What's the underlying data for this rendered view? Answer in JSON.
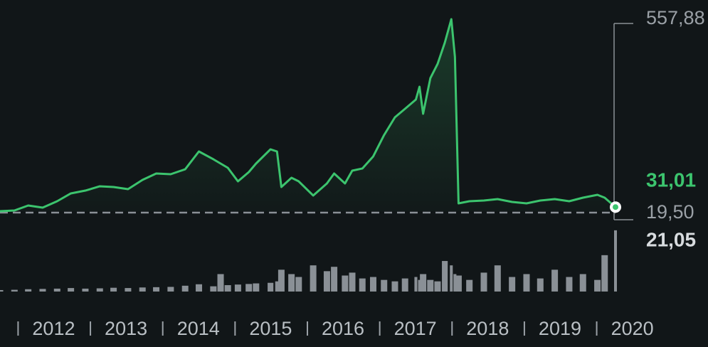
{
  "chart_data": {
    "type": "line",
    "x": [
      2011.75,
      2011.95,
      2012.14,
      2012.34,
      2012.54,
      2012.73,
      2012.93,
      2013.13,
      2013.32,
      2013.52,
      2013.72,
      2013.91,
      2014.11,
      2014.31,
      2014.5,
      2014.7,
      2014.8,
      2014.9,
      2015.04,
      2015.19,
      2015.29,
      2015.49,
      2015.58,
      2015.64,
      2015.78,
      2015.88,
      2016.08,
      2016.27,
      2016.37,
      2016.52,
      2016.62,
      2016.76,
      2016.91,
      2017.06,
      2017.21,
      2017.35,
      2017.5,
      2017.55,
      2017.6,
      2017.7,
      2017.8,
      2017.9,
      2017.99,
      2018.04,
      2018.09,
      2018.24,
      2018.44,
      2018.63,
      2018.83,
      2019.03,
      2019.22,
      2019.42,
      2019.62,
      2019.81,
      2020.01,
      2020.11,
      2020.26
    ],
    "series": [
      {
        "color": "#3cc46e",
        "values": [
          19.5,
          21.5,
          35.5,
          29.5,
          47.4,
          69.4,
          77.3,
          89.3,
          87.3,
          81.3,
          107.2,
          125.2,
          123.2,
          137.1,
          187,
          165.1,
          153.1,
          141.1,
          103.2,
          129.2,
          153.1,
          193,
          187,
          87.3,
          113.2,
          103.2,
          63.4,
          97.3,
          125.2,
          97.3,
          133.2,
          139.2,
          173.1,
          232.9,
          282.7,
          306.6,
          332.6,
          368.5,
          292.7,
          392.4,
          432.3,
          492.1,
          557.88,
          452.2,
          41.4,
          47.4,
          49.4,
          53.4,
          45.4,
          41.4,
          49.4,
          53.4,
          47.4,
          57.4,
          65.4,
          57.4,
          31.01
        ],
        "value_labels": [
          null,
          null,
          null,
          null,
          null,
          null,
          null,
          null,
          null,
          null,
          null,
          null,
          null,
          null,
          null,
          null,
          null,
          null,
          null,
          null,
          null,
          null,
          null,
          null,
          null,
          null,
          null,
          null,
          null,
          null,
          null,
          null,
          null,
          null,
          null,
          null,
          null,
          null,
          null,
          null,
          null,
          null,
          null,
          null,
          null,
          null,
          null,
          null,
          null,
          null,
          null,
          null,
          null,
          null,
          null,
          null,
          "31,01"
        ]
      },
      {
        "color": "#8a9096",
        "axis": "y2",
        "values": [
          0.5,
          0.6,
          0.8,
          0.9,
          1.0,
          1.2,
          1.0,
          1.1,
          1.3,
          1.2,
          1.4,
          1.5,
          1.6,
          2.0,
          2.5,
          1.8,
          6.0,
          2.2,
          2.4,
          2.6,
          2.8,
          3.0,
          3.5,
          7.5,
          6.0,
          5.0,
          9.0,
          7.0,
          8.5,
          5.5,
          6.5,
          4.5,
          5.0,
          4.0,
          3.5,
          4.5,
          5.0,
          4.0,
          6.0,
          4.0,
          3.5,
          10.5,
          9.0,
          6.0,
          5.5,
          4.0,
          6.5,
          9.0,
          5.0,
          6.0,
          4.5,
          7.5,
          5.0,
          6.0,
          4.0,
          12.5,
          21.05
        ],
        "value_labels": [
          null,
          null,
          null,
          null,
          null,
          null,
          null,
          null,
          null,
          null,
          null,
          null,
          null,
          null,
          null,
          null,
          null,
          null,
          null,
          null,
          null,
          null,
          null,
          null,
          null,
          null,
          null,
          null,
          null,
          null,
          null,
          null,
          null,
          null,
          null,
          null,
          null,
          null,
          null,
          null,
          null,
          null,
          null,
          null,
          null,
          null,
          null,
          null,
          null,
          null,
          null,
          null,
          null,
          null,
          null,
          null,
          "21,05"
        ]
      }
    ],
    "xlim": [
      2011.75,
      2020.26
    ],
    "xticks": [
      2012,
      2013,
      2014,
      2015,
      2016,
      2017,
      2018,
      2019,
      2020
    ],
    "ylim": [
      19.5,
      557.88
    ],
    "yticks": [
      {
        "value": 557.88,
        "label": "557,88"
      },
      {
        "value": 19.5,
        "label": "19,50"
      }
    ],
    "y2lim": [
      0,
      22
    ]
  }
}
